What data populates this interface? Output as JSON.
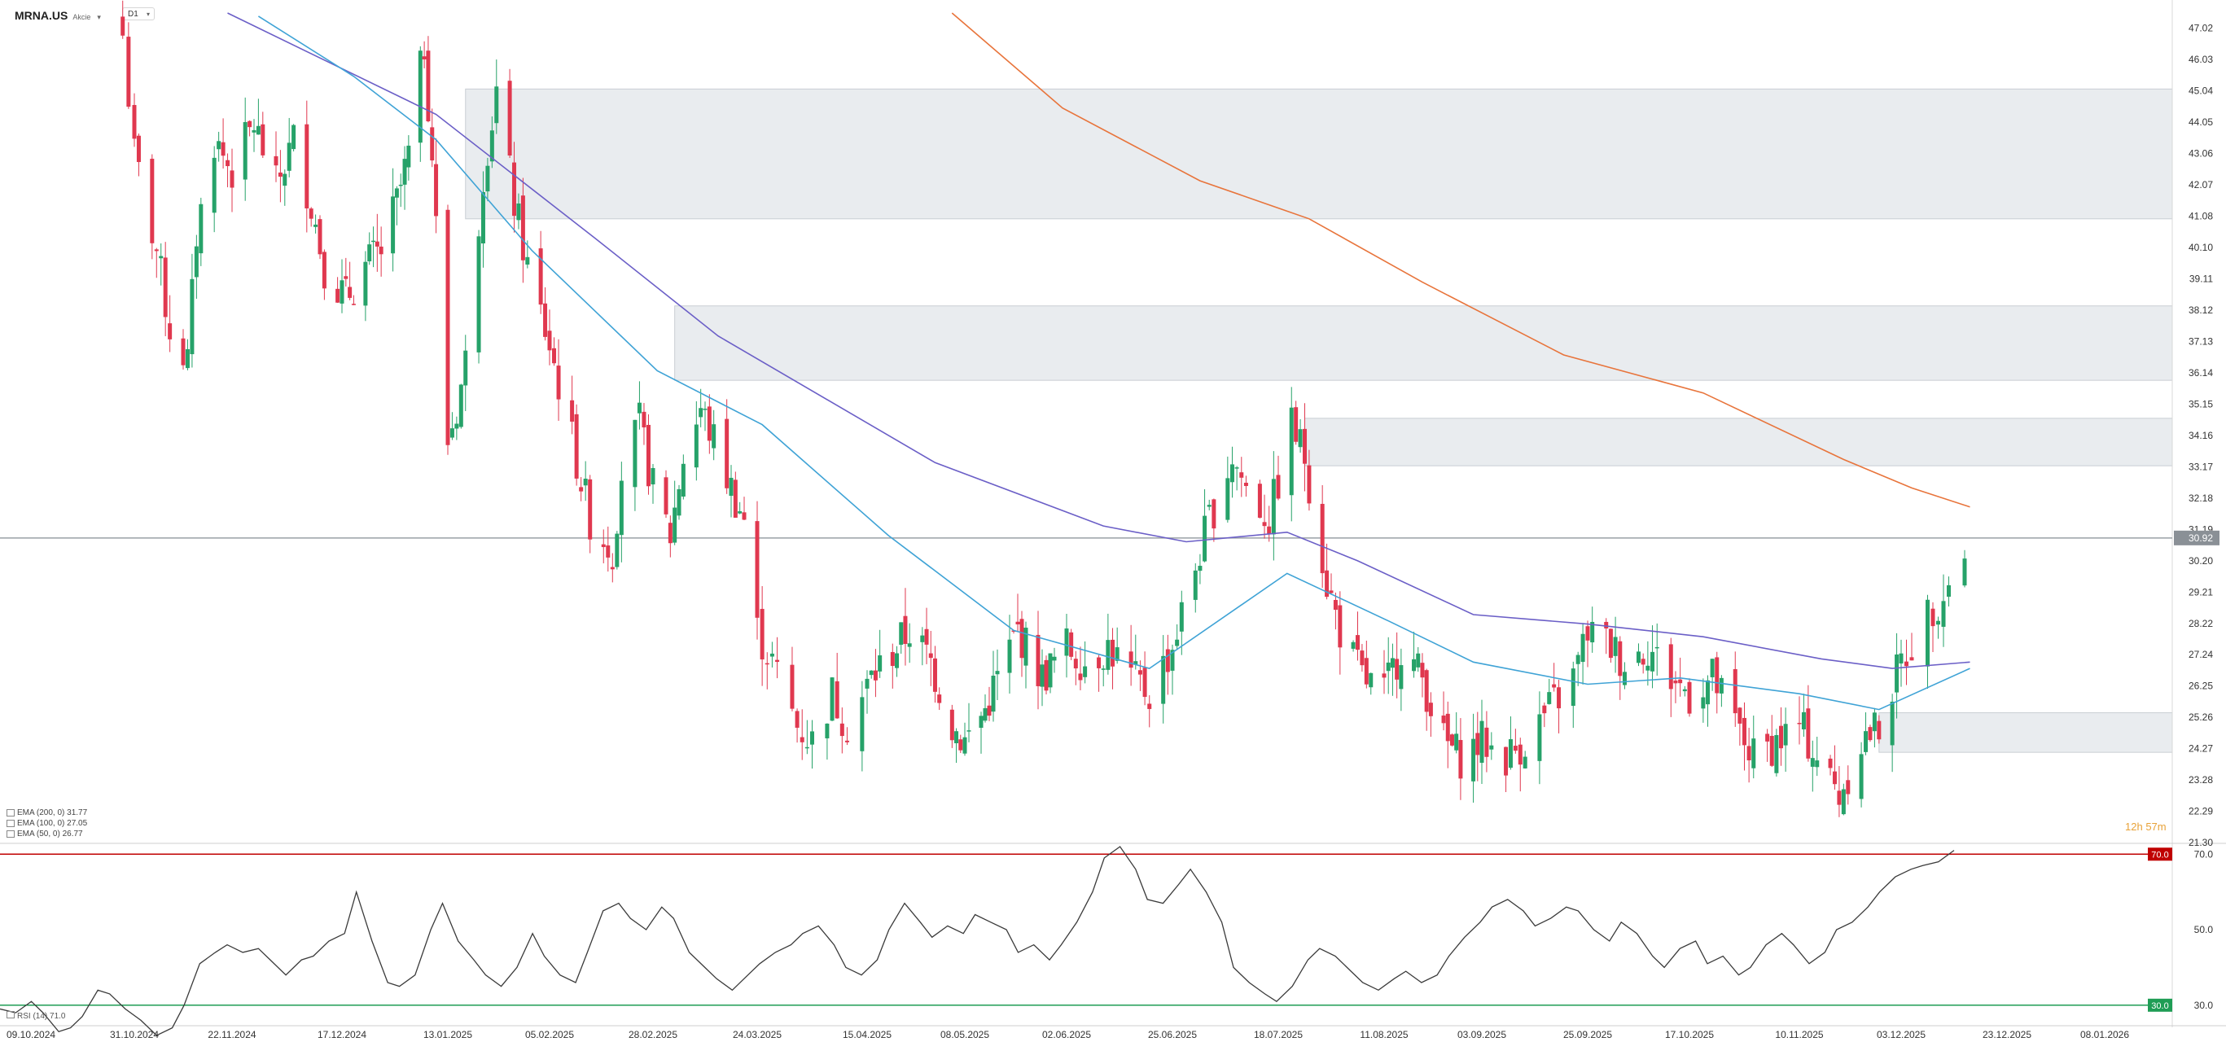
{
  "header": {
    "symbol": "MRNA.US",
    "instrument_type": "Akcie",
    "timeframe": "D1"
  },
  "legend": [
    {
      "label": "EMA (200, 0) 31.77",
      "color": "#e8743b"
    },
    {
      "label": "EMA (100, 0) 27.05",
      "color": "#6b5fc7"
    },
    {
      "label": "EMA (50, 0) 26.77",
      "color": "#3fa3d6"
    }
  ],
  "rsi_label": "RSI (14) 71.0",
  "timer": {
    "hours": "12h",
    "minutes": "57m"
  },
  "price_now": "30.92",
  "rsi_markers": {
    "upper": "70.0",
    "lower": "30.0",
    "upper_color": "#c00000",
    "lower_color": "#1f9d55"
  },
  "chart_data": [
    {
      "type": "candlestick",
      "ylim": [
        21.3,
        47.5
      ],
      "y_ticks": [
        "47.02",
        "46.03",
        "45.04",
        "44.05",
        "43.06",
        "42.07",
        "41.08",
        "40.10",
        "39.11",
        "38.12",
        "37.13",
        "36.14",
        "35.15",
        "34.16",
        "33.17",
        "32.18",
        "31.19",
        "30.20",
        "29.21",
        "28.22",
        "27.24",
        "26.25",
        "25.26",
        "24.27",
        "23.28",
        "22.29",
        "21.30"
      ],
      "x_tick_labels": [
        "09.10.2024",
        "31.10.2024",
        "22.11.2024",
        "17.12.2024",
        "13.01.2025",
        "05.02.2025",
        "28.02.2025",
        "24.03.2025",
        "15.04.2025",
        "08.05.2025",
        "02.06.2025",
        "25.06.2025",
        "18.07.2025",
        "11.08.2025",
        "03.09.2025",
        "25.09.2025",
        "17.10.2025",
        "10.11.2025",
        "03.12.2025",
        "23.12.2025",
        "08.01.2026"
      ],
      "current_price": 30.92,
      "colors": {
        "up": "#26a269",
        "down": "#e0384f"
      },
      "zones": [
        {
          "from": 41.0,
          "to": 45.1,
          "start": "17.01.2025"
        },
        {
          "from": 35.9,
          "to": 38.25,
          "start": "05.03.2025"
        },
        {
          "from": 33.2,
          "to": 34.7,
          "start": "24.07.2025"
        },
        {
          "from": 24.15,
          "to": 25.4,
          "start": "28.11.2025"
        }
      ],
      "ema": [
        {
          "name": "EMA (200, 0)",
          "color": "#e8743b",
          "points": [
            [
              "05.05.2025",
              47.5
            ],
            [
              "01.06.2025",
              44.5
            ],
            [
              "01.07.2025",
              42.2
            ],
            [
              "25.07.2025",
              41.0
            ],
            [
              "20.08.2025",
              39.0
            ],
            [
              "20.09.2025",
              36.7
            ],
            [
              "20.10.2025",
              35.5
            ],
            [
              "20.11.2025",
              33.4
            ],
            [
              "05.12.2025",
              32.5
            ],
            [
              "16.12.2025",
              31.9
            ]
          ]
        },
        {
          "name": "EMA (100, 0)",
          "color": "#6b5fc7",
          "points": [
            [
              "21.11.2024",
              47.5
            ],
            [
              "10.01.2025",
              44.3
            ],
            [
              "15.02.2025",
              40.4
            ],
            [
              "15.03.2025",
              37.3
            ],
            [
              "01.05.2025",
              33.3
            ],
            [
              "10.06.2025",
              31.3
            ],
            [
              "28.06.2025",
              30.8
            ],
            [
              "20.07.2025",
              31.1
            ],
            [
              "05.08.2025",
              30.2
            ],
            [
              "01.09.2025",
              28.5
            ],
            [
              "25.09.2025",
              28.2
            ],
            [
              "20.10.2025",
              27.8
            ],
            [
              "15.11.2025",
              27.1
            ],
            [
              "01.12.2025",
              26.8
            ],
            [
              "16.12.2025",
              27.0
            ]
          ]
        },
        {
          "name": "EMA (50, 0)",
          "color": "#3fa3d6",
          "points": [
            [
              "28.11.2024",
              47.4
            ],
            [
              "20.12.2024",
              45.5
            ],
            [
              "10.01.2025",
              43.5
            ],
            [
              "01.02.2025",
              40.0
            ],
            [
              "01.03.2025",
              36.2
            ],
            [
              "25.03.2025",
              34.5
            ],
            [
              "20.04.2025",
              31.0
            ],
            [
              "20.05.2025",
              28.0
            ],
            [
              "20.06.2025",
              26.8
            ],
            [
              "20.07.2025",
              29.8
            ],
            [
              "12.08.2025",
              28.3
            ],
            [
              "01.09.2025",
              27.0
            ],
            [
              "25.09.2025",
              26.3
            ],
            [
              "15.10.2025",
              26.5
            ],
            [
              "10.11.2025",
              26.0
            ],
            [
              "28.11.2025",
              25.5
            ],
            [
              "16.12.2025",
              26.8
            ]
          ]
        }
      ]
    },
    {
      "type": "line",
      "name": "RSI (14)",
      "ylim": [
        25,
        72
      ],
      "y_ticks": [
        "70.0",
        "50.0",
        "30.0"
      ],
      "levels": [
        70,
        30
      ],
      "points": [
        [
          0,
          29
        ],
        [
          4,
          28
        ],
        [
          8,
          31
        ],
        [
          11,
          28
        ],
        [
          15,
          23
        ],
        [
          18,
          24
        ],
        [
          21,
          27
        ],
        [
          25,
          34
        ],
        [
          28,
          33
        ],
        [
          32,
          29
        ],
        [
          36,
          26
        ],
        [
          40,
          22
        ],
        [
          44,
          24
        ],
        [
          47,
          30
        ],
        [
          51,
          41
        ],
        [
          55,
          44
        ],
        [
          58,
          46
        ],
        [
          62,
          44
        ],
        [
          66,
          45
        ],
        [
          69,
          42
        ],
        [
          73,
          38
        ],
        [
          77,
          42
        ],
        [
          80,
          43
        ],
        [
          84,
          47
        ],
        [
          88,
          49
        ],
        [
          91,
          60
        ],
        [
          95,
          47
        ],
        [
          99,
          36
        ],
        [
          102,
          35
        ],
        [
          106,
          38
        ],
        [
          110,
          50
        ],
        [
          113,
          57
        ],
        [
          117,
          47
        ],
        [
          121,
          42
        ],
        [
          124,
          38
        ],
        [
          128,
          35
        ],
        [
          132,
          40
        ],
        [
          136,
          49
        ],
        [
          139,
          43
        ],
        [
          143,
          38
        ],
        [
          147,
          36
        ],
        [
          150,
          44
        ],
        [
          154,
          55
        ],
        [
          158,
          57
        ],
        [
          161,
          53
        ],
        [
          165,
          50
        ],
        [
          169,
          56
        ],
        [
          172,
          53
        ],
        [
          176,
          44
        ],
        [
          180,
          40
        ],
        [
          183,
          37
        ],
        [
          187,
          34
        ],
        [
          191,
          38
        ],
        [
          194,
          41
        ],
        [
          198,
          44
        ],
        [
          202,
          46
        ],
        [
          205,
          49
        ],
        [
          209,
          51
        ],
        [
          213,
          46
        ],
        [
          216,
          40
        ],
        [
          220,
          38
        ],
        [
          224,
          42
        ],
        [
          227,
          50
        ],
        [
          231,
          57
        ],
        [
          235,
          52
        ],
        [
          238,
          48
        ],
        [
          242,
          51
        ],
        [
          246,
          49
        ],
        [
          249,
          54
        ],
        [
          253,
          52
        ],
        [
          257,
          50
        ],
        [
          260,
          44
        ],
        [
          264,
          46
        ],
        [
          268,
          42
        ],
        [
          271,
          46
        ],
        [
          275,
          52
        ],
        [
          279,
          60
        ],
        [
          282,
          69
        ],
        [
          286,
          72
        ],
        [
          290,
          66
        ],
        [
          293,
          58
        ],
        [
          297,
          57
        ],
        [
          301,
          62
        ],
        [
          304,
          66
        ],
        [
          308,
          60
        ],
        [
          312,
          52
        ],
        [
          315,
          40
        ],
        [
          319,
          36
        ],
        [
          323,
          33
        ],
        [
          326,
          31
        ],
        [
          330,
          35
        ],
        [
          334,
          42
        ],
        [
          337,
          45
        ],
        [
          341,
          43
        ],
        [
          345,
          39
        ],
        [
          348,
          36
        ],
        [
          352,
          34
        ],
        [
          356,
          37
        ],
        [
          359,
          39
        ],
        [
          363,
          36
        ],
        [
          367,
          38
        ],
        [
          370,
          43
        ],
        [
          374,
          48
        ],
        [
          378,
          52
        ],
        [
          381,
          56
        ],
        [
          385,
          58
        ],
        [
          389,
          55
        ],
        [
          392,
          51
        ],
        [
          396,
          53
        ],
        [
          400,
          56
        ],
        [
          403,
          55
        ],
        [
          407,
          50
        ],
        [
          411,
          47
        ],
        [
          414,
          52
        ],
        [
          418,
          49
        ],
        [
          422,
          43
        ],
        [
          425,
          40
        ],
        [
          429,
          45
        ],
        [
          433,
          47
        ],
        [
          436,
          41
        ],
        [
          440,
          43
        ],
        [
          444,
          38
        ],
        [
          447,
          40
        ],
        [
          451,
          46
        ],
        [
          455,
          49
        ],
        [
          458,
          46
        ],
        [
          462,
          41
        ],
        [
          466,
          44
        ],
        [
          469,
          50
        ],
        [
          473,
          52
        ],
        [
          477,
          56
        ],
        [
          480,
          60
        ],
        [
          484,
          64
        ],
        [
          488,
          66
        ],
        [
          491,
          67
        ],
        [
          495,
          68
        ],
        [
          499,
          71
        ]
      ]
    }
  ]
}
